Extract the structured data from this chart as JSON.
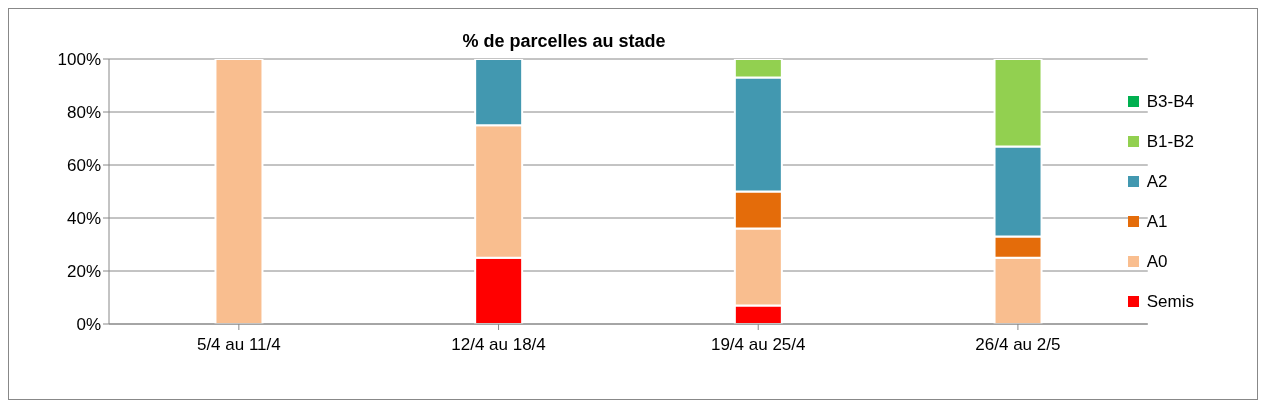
{
  "chart_data": {
    "type": "bar",
    "title": "% de parcelles au stade",
    "categories": [
      "5/4 au 11/4",
      "12/4 au 18/4",
      "19/4 au 25/4",
      "26/4 au 2/5"
    ],
    "stacked": true,
    "series": [
      {
        "name": "Semis",
        "color": "#ff0000",
        "values": [
          0,
          25,
          7,
          0
        ]
      },
      {
        "name": "A0",
        "color": "#f9be8f",
        "values": [
          100,
          50,
          29,
          25
        ]
      },
      {
        "name": "A1",
        "color": "#e46c0a",
        "values": [
          0,
          0,
          14,
          8
        ]
      },
      {
        "name": "A2",
        "color": "#4298b0",
        "values": [
          0,
          25,
          43,
          34
        ]
      },
      {
        "name": "B1-B2",
        "color": "#92d050",
        "values": [
          0,
          0,
          7,
          33
        ]
      },
      {
        "name": "B3-B4",
        "color": "#00b050",
        "values": [
          0,
          0,
          0,
          0
        ]
      }
    ],
    "ylim": [
      0,
      100
    ],
    "yticks": [
      {
        "value": 0,
        "label": "0%"
      },
      {
        "value": 20,
        "label": "20%"
      },
      {
        "value": 40,
        "label": "40%"
      },
      {
        "value": 60,
        "label": "60%"
      },
      {
        "value": 80,
        "label": "80%"
      },
      {
        "value": 100,
        "label": "100%"
      }
    ],
    "grid": "y",
    "legend": "right"
  }
}
